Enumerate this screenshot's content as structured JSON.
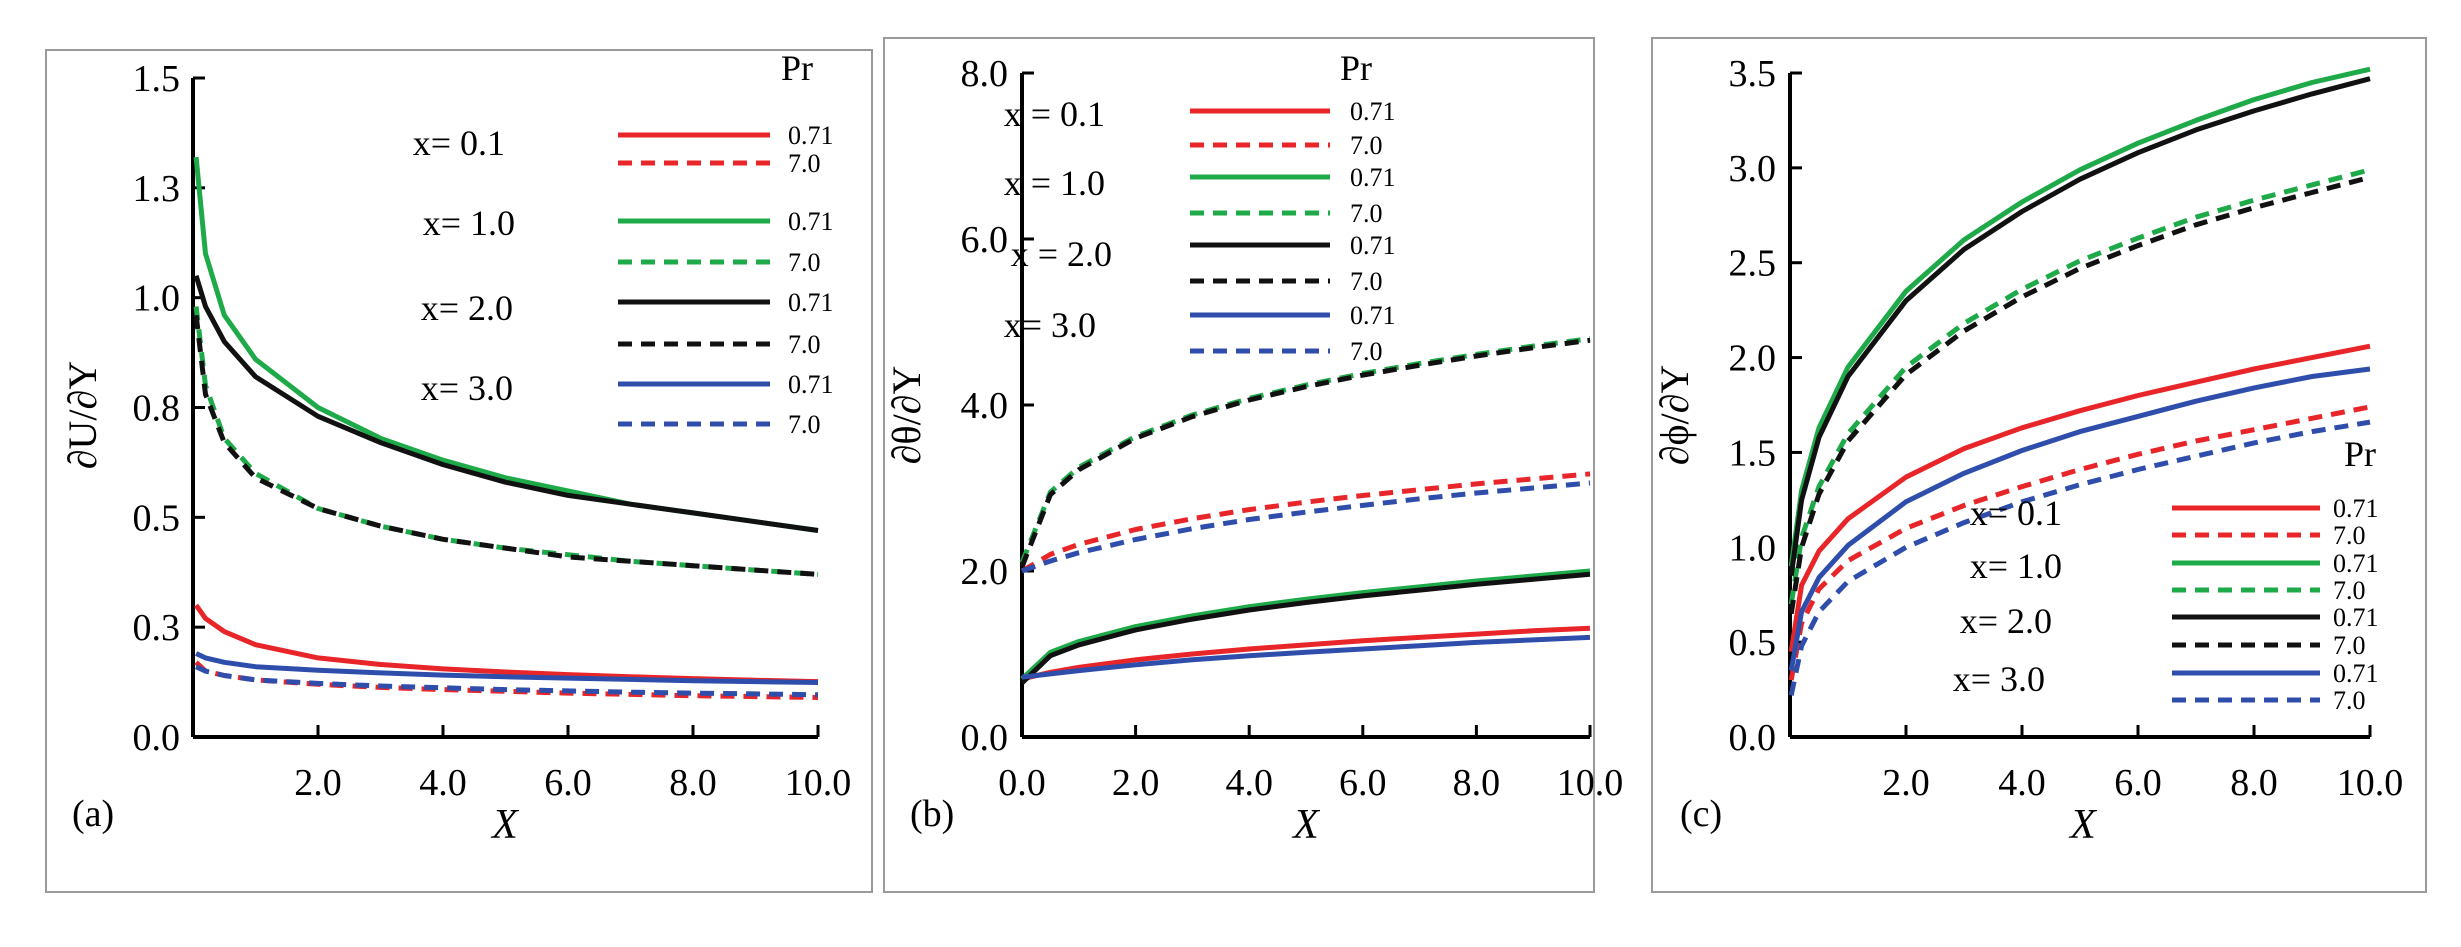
{
  "colors": {
    "red": "#e8262a",
    "green": "#1faa4a",
    "black": "#111111",
    "blue": "#2f4eab"
  },
  "chart_data": [
    {
      "type": "line",
      "panel": "(a)",
      "xlabel": "X",
      "ylabel": "∂U/∂Y",
      "xlim": [
        0,
        10
      ],
      "ylim": [
        0,
        1.5
      ],
      "xticks": [
        2,
        4,
        6,
        8,
        10
      ],
      "xtick_labels": [
        "2.0",
        "4.0",
        "6.0",
        "8.0",
        "10.0"
      ],
      "yticks": [
        0,
        0.25,
        0.5,
        0.75,
        1.0,
        1.25,
        1.5
      ],
      "ytick_labels": [
        "0.0",
        "0.3",
        "0.5",
        "0.8",
        "1.0",
        "1.3",
        "1.5"
      ],
      "legend": {
        "header": "Pr",
        "groups": [
          "x= 0.1",
          "x= 1.0",
          "x= 2.0",
          "x= 3.0"
        ],
        "pr_values": [
          "0.71",
          "7.0"
        ],
        "placement": "top-right"
      },
      "x": [
        0.05,
        0.2,
        0.5,
        1,
        2,
        3,
        4,
        5,
        6,
        7,
        8,
        9,
        10
      ],
      "series": [
        {
          "name": "x= 0.1, Pr=0.71",
          "color": "red",
          "dash": false,
          "values": [
            0.3,
            0.27,
            0.24,
            0.21,
            0.18,
            0.165,
            0.155,
            0.148,
            0.142,
            0.137,
            0.133,
            0.129,
            0.126
          ]
        },
        {
          "name": "x= 0.1, Pr=7.0",
          "color": "red",
          "dash": true,
          "values": [
            0.17,
            0.15,
            0.14,
            0.13,
            0.12,
            0.113,
            0.108,
            0.104,
            0.1,
            0.097,
            0.094,
            0.092,
            0.09
          ]
        },
        {
          "name": "x= 1.0, Pr=0.71",
          "color": "green",
          "dash": false,
          "values": [
            1.32,
            1.1,
            0.96,
            0.86,
            0.75,
            0.68,
            0.63,
            0.59,
            0.56,
            0.53,
            0.51,
            0.49,
            0.47
          ]
        },
        {
          "name": "x= 1.0, Pr=7.0",
          "color": "green",
          "dash": true,
          "values": [
            0.98,
            0.8,
            0.68,
            0.6,
            0.52,
            0.48,
            0.45,
            0.43,
            0.415,
            0.4,
            0.39,
            0.38,
            0.37
          ]
        },
        {
          "name": "x= 2.0, Pr=0.71",
          "color": "black",
          "dash": false,
          "values": [
            1.05,
            0.98,
            0.9,
            0.82,
            0.73,
            0.67,
            0.62,
            0.58,
            0.55,
            0.53,
            0.51,
            0.49,
            0.47
          ]
        },
        {
          "name": "x= 2.0, Pr=7.0",
          "color": "black",
          "dash": true,
          "values": [
            0.96,
            0.78,
            0.67,
            0.59,
            0.52,
            0.48,
            0.45,
            0.43,
            0.41,
            0.4,
            0.39,
            0.38,
            0.37
          ]
        },
        {
          "name": "x= 3.0, Pr=0.71",
          "color": "blue",
          "dash": false,
          "values": [
            0.19,
            0.18,
            0.17,
            0.16,
            0.152,
            0.146,
            0.141,
            0.137,
            0.134,
            0.131,
            0.128,
            0.126,
            0.124
          ]
        },
        {
          "name": "x= 3.0, Pr=7.0",
          "color": "blue",
          "dash": true,
          "values": [
            0.16,
            0.15,
            0.14,
            0.13,
            0.122,
            0.116,
            0.112,
            0.108,
            0.105,
            0.102,
            0.1,
            0.098,
            0.096
          ]
        }
      ]
    },
    {
      "type": "line",
      "panel": "(b)",
      "xlabel": "X",
      "ylabel": "∂θ/∂Y",
      "xlim": [
        0,
        10
      ],
      "ylim": [
        0,
        8
      ],
      "xticks": [
        0,
        2,
        4,
        6,
        8,
        10
      ],
      "xtick_labels": [
        "0.0",
        "2.0",
        "4.0",
        "6.0",
        "8.0",
        "10.0"
      ],
      "yticks": [
        0,
        2,
        4,
        6,
        8
      ],
      "ytick_labels": [
        "0.0",
        "2.0",
        "4.0",
        "6.0",
        "8.0"
      ],
      "legend": {
        "header": "Pr",
        "groups": [
          "x = 0.1",
          "x = 1.0",
          "x = 2.0",
          "x= 3.0"
        ],
        "pr_values": [
          "0.71",
          "7.0"
        ],
        "placement": "top-left"
      },
      "x": [
        0,
        0.5,
        1,
        2,
        3,
        4,
        5,
        6,
        7,
        8,
        9,
        10
      ],
      "series": [
        {
          "name": "x = 0.1, Pr=0.71",
          "color": "red",
          "dash": false,
          "values": [
            0.7,
            0.78,
            0.84,
            0.93,
            1.0,
            1.06,
            1.11,
            1.16,
            1.2,
            1.24,
            1.28,
            1.31
          ]
        },
        {
          "name": "x = 0.1, Pr=7.0",
          "color": "red",
          "dash": true,
          "values": [
            2.0,
            2.2,
            2.32,
            2.5,
            2.63,
            2.74,
            2.83,
            2.91,
            2.98,
            3.05,
            3.11,
            3.17
          ]
        },
        {
          "name": "x = 1.0, Pr=0.71",
          "color": "green",
          "dash": false,
          "values": [
            0.7,
            1.02,
            1.15,
            1.33,
            1.46,
            1.57,
            1.66,
            1.74,
            1.81,
            1.88,
            1.94,
            2.0
          ]
        },
        {
          "name": "x = 1.0, Pr=7.0",
          "color": "green",
          "dash": true,
          "values": [
            2.1,
            2.95,
            3.25,
            3.62,
            3.88,
            4.08,
            4.24,
            4.38,
            4.5,
            4.61,
            4.71,
            4.8
          ]
        },
        {
          "name": "x = 2.0, Pr=0.71",
          "color": "black",
          "dash": false,
          "values": [
            0.65,
            0.98,
            1.11,
            1.29,
            1.42,
            1.53,
            1.62,
            1.7,
            1.77,
            1.84,
            1.9,
            1.96
          ]
        },
        {
          "name": "x = 2.0, Pr=7.0",
          "color": "black",
          "dash": true,
          "values": [
            2.05,
            2.92,
            3.22,
            3.6,
            3.86,
            4.06,
            4.22,
            4.36,
            4.48,
            4.59,
            4.69,
            4.78
          ]
        },
        {
          "name": "x= 3.0, Pr=0.71",
          "color": "blue",
          "dash": false,
          "values": [
            0.72,
            0.76,
            0.8,
            0.87,
            0.93,
            0.98,
            1.02,
            1.06,
            1.1,
            1.14,
            1.17,
            1.2
          ]
        },
        {
          "name": "x= 3.0, Pr=7.0",
          "color": "blue",
          "dash": true,
          "values": [
            2.0,
            2.12,
            2.22,
            2.38,
            2.51,
            2.62,
            2.71,
            2.79,
            2.87,
            2.94,
            3.0,
            3.06
          ]
        }
      ]
    },
    {
      "type": "line",
      "panel": "(c)",
      "xlabel": "X",
      "ylabel": "∂ϕ/∂Y",
      "xlim": [
        0,
        10
      ],
      "ylim": [
        0,
        3.5
      ],
      "xticks": [
        2,
        4,
        6,
        8,
        10
      ],
      "xtick_labels": [
        "2.0",
        "4.0",
        "6.0",
        "8.0",
        "10.0"
      ],
      "yticks": [
        0,
        0.5,
        1,
        1.5,
        2,
        2.5,
        3,
        3.5
      ],
      "ytick_labels": [
        "0.0",
        "0.5",
        "1.0",
        "1.5",
        "2.0",
        "2.5",
        "3.0",
        "3.5"
      ],
      "legend": {
        "header": "Pr",
        "groups": [
          "x= 0.1",
          "x= 1.0",
          "x= 2.0",
          "x= 3.0"
        ],
        "pr_values": [
          "0.71",
          "7.0"
        ],
        "placement": "bottom-right"
      },
      "x": [
        0.02,
        0.2,
        0.5,
        1,
        2,
        3,
        4,
        5,
        6,
        7,
        8,
        9,
        10
      ],
      "series": [
        {
          "name": "x= 0.1, Pr=0.71",
          "color": "red",
          "dash": false,
          "values": [
            0.45,
            0.8,
            0.98,
            1.15,
            1.37,
            1.52,
            1.63,
            1.72,
            1.8,
            1.87,
            1.94,
            2.0,
            2.06
          ]
        },
        {
          "name": "x= 0.1, Pr=7.0",
          "color": "red",
          "dash": true,
          "values": [
            0.3,
            0.6,
            0.78,
            0.93,
            1.1,
            1.22,
            1.32,
            1.41,
            1.49,
            1.56,
            1.62,
            1.68,
            1.74
          ]
        },
        {
          "name": "x= 1.0, Pr=0.71",
          "color": "green",
          "dash": false,
          "values": [
            0.9,
            1.3,
            1.63,
            1.95,
            2.35,
            2.62,
            2.82,
            2.99,
            3.13,
            3.25,
            3.36,
            3.45,
            3.52
          ]
        },
        {
          "name": "x= 1.0, Pr=7.0",
          "color": "green",
          "dash": true,
          "values": [
            0.7,
            1.05,
            1.32,
            1.6,
            1.95,
            2.18,
            2.36,
            2.51,
            2.63,
            2.74,
            2.83,
            2.91,
            2.99
          ]
        },
        {
          "name": "x= 2.0, Pr=0.71",
          "color": "black",
          "dash": false,
          "values": [
            0.85,
            1.25,
            1.58,
            1.9,
            2.3,
            2.57,
            2.77,
            2.94,
            3.08,
            3.2,
            3.3,
            3.39,
            3.47
          ]
        },
        {
          "name": "x= 2.0, Pr=7.0",
          "color": "black",
          "dash": true,
          "values": [
            0.65,
            1.0,
            1.28,
            1.56,
            1.91,
            2.14,
            2.32,
            2.47,
            2.59,
            2.7,
            2.79,
            2.87,
            2.95
          ]
        },
        {
          "name": "x= 3.0, Pr=0.71",
          "color": "blue",
          "dash": false,
          "values": [
            0.35,
            0.66,
            0.84,
            1.01,
            1.24,
            1.39,
            1.51,
            1.61,
            1.69,
            1.77,
            1.84,
            1.9,
            1.94
          ]
        },
        {
          "name": "x= 3.0, Pr=7.0",
          "color": "blue",
          "dash": true,
          "values": [
            0.22,
            0.48,
            0.66,
            0.82,
            1.0,
            1.13,
            1.24,
            1.33,
            1.41,
            1.48,
            1.55,
            1.61,
            1.66
          ]
        }
      ]
    }
  ]
}
